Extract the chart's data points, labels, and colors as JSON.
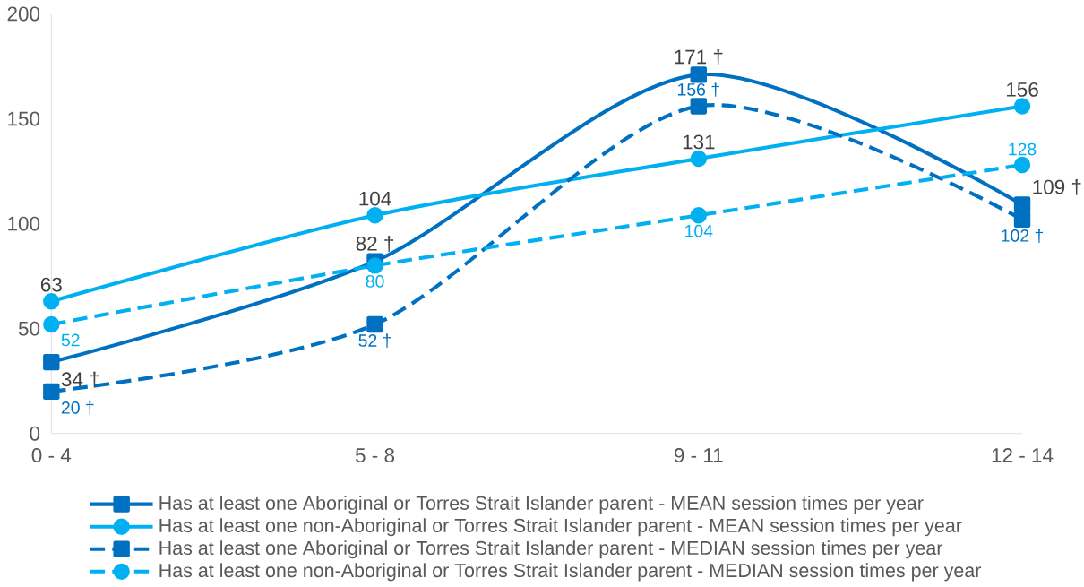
{
  "chart_data": {
    "type": "line",
    "categories": [
      "0 - 4",
      "5 - 8",
      "9 - 11",
      "12 - 14"
    ],
    "ylim": [
      0,
      200
    ],
    "yticks": [
      0,
      50,
      100,
      150,
      200
    ],
    "grid": false,
    "legend": "bottom",
    "series": [
      {
        "name": "Has at least one Aboriginal or Torres Strait Islander parent - MEAN session times per year",
        "color": "#0070c0",
        "marker": "square",
        "line_style": "solid",
        "values": [
          34,
          82,
          171,
          109
        ],
        "value_labels": [
          "34 †",
          "82 †",
          "171 †",
          "109 †"
        ]
      },
      {
        "name": "Has at least one non-Aboriginal or Torres Strait Islander parent - MEAN session times per year",
        "color": "#00b0f0",
        "marker": "circle",
        "line_style": "solid",
        "values": [
          63,
          104,
          131,
          156
        ],
        "value_labels": [
          "63",
          "104",
          "131",
          "156"
        ]
      },
      {
        "name": "Has at least one Aboriginal or Torres Strait Islander parent - MEDIAN session times per year",
        "color": "#0070c0",
        "marker": "square",
        "line_style": "dashed",
        "values": [
          20,
          52,
          156,
          102
        ],
        "value_labels": [
          "20 †",
          "52 †",
          "156 †",
          "102 †"
        ]
      },
      {
        "name": "Has at least one non-Aboriginal or Torres Strait Islander parent - MEDIAN session times per year",
        "color": "#00b0f0",
        "marker": "circle",
        "line_style": "dashed",
        "values": [
          52,
          80,
          104,
          128
        ],
        "value_labels": [
          "52",
          "80",
          "104",
          "128"
        ]
      }
    ]
  }
}
